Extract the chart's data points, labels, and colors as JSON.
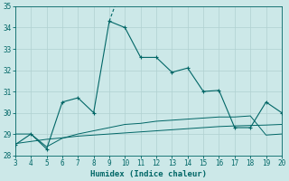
{
  "title": "",
  "xlabel": "Humidex (Indice chaleur)",
  "ylabel": "",
  "bg_color": "#cce8e8",
  "grid_color": "#b0d0d0",
  "line_color": "#006666",
  "xlim": [
    3,
    20
  ],
  "ylim": [
    28,
    35
  ],
  "xticks": [
    3,
    4,
    5,
    6,
    7,
    8,
    9,
    10,
    11,
    12,
    13,
    14,
    15,
    16,
    17,
    18,
    19,
    20
  ],
  "yticks": [
    28,
    29,
    30,
    31,
    32,
    33,
    34,
    35
  ],
  "main_line": {
    "x": [
      3,
      4,
      5,
      6,
      7,
      8,
      9,
      10,
      11,
      12,
      13,
      14,
      15,
      16,
      17,
      18,
      19,
      20
    ],
    "y": [
      28.5,
      29.0,
      28.3,
      30.5,
      30.7,
      30.0,
      34.3,
      34.0,
      32.6,
      32.6,
      31.9,
      32.1,
      31.0,
      31.05,
      29.3,
      29.3,
      30.5,
      30.0
    ]
  },
  "line2": {
    "x": [
      3,
      4,
      5,
      6,
      7,
      8,
      9,
      10,
      11,
      12,
      13,
      14,
      15,
      16,
      17,
      18,
      19,
      20
    ],
    "y": [
      29.0,
      29.0,
      28.4,
      28.8,
      29.0,
      29.15,
      29.3,
      29.45,
      29.5,
      29.6,
      29.65,
      29.7,
      29.75,
      29.8,
      29.8,
      29.85,
      28.95,
      29.0
    ]
  },
  "line3": {
    "x": [
      3,
      4,
      5,
      6,
      7,
      8,
      9,
      10,
      11,
      12,
      13,
      14,
      15,
      16,
      17,
      18,
      19,
      20
    ],
    "y": [
      28.55,
      28.65,
      28.75,
      28.82,
      28.9,
      28.95,
      29.0,
      29.05,
      29.1,
      29.15,
      29.2,
      29.25,
      29.3,
      29.35,
      29.38,
      29.4,
      29.42,
      29.45
    ]
  },
  "dashed_segment": {
    "x": [
      9.0,
      9.4
    ],
    "y": [
      34.3,
      35.1
    ]
  }
}
